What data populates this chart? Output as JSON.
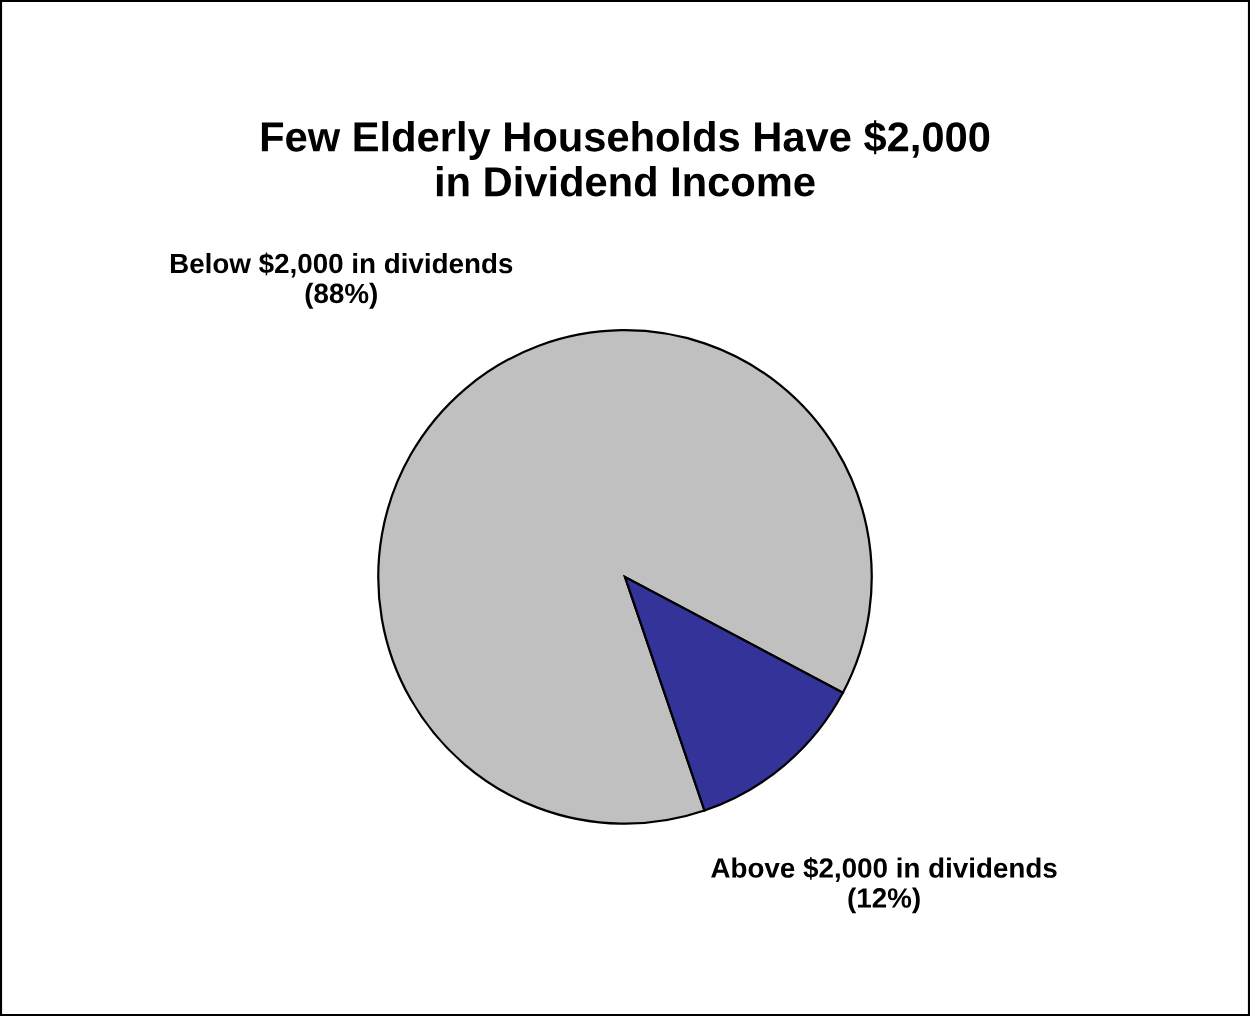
{
  "chart_data": {
    "type": "pie",
    "title": "Few Elderly Households Have $2,000\nin Dividend Income",
    "categories": [
      "Below $2,000 in dividends",
      "Above $2,000 in dividends"
    ],
    "values": [
      88,
      12
    ],
    "value_labels": [
      "(88%)",
      "(12%)"
    ],
    "colors": [
      "#c0c0c0",
      "#333399"
    ]
  }
}
